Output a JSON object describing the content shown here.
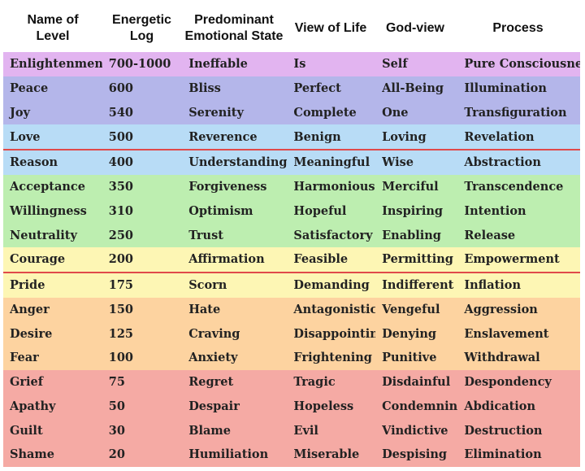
{
  "headers": [
    "Name of\nLevel",
    "Energetic\nLog",
    "Predominant\nEmotional State",
    "View of Life",
    "God-view",
    "Process"
  ],
  "colors": {
    "violet": "#e2b4f0",
    "blue_violet": "#b4b6ea",
    "light_blue": "#b8dcf6",
    "green": "#bdeeb0",
    "yellow": "#fdf6b4",
    "orange": "#fdd3a0",
    "red": "#f5aaa4",
    "divider": "#e04a4a"
  },
  "rows": [
    {
      "level": "Enlightenment",
      "log": "700-1000",
      "emotion": "Ineffable",
      "view": "Is",
      "god": "Self",
      "process": "Pure Consciousness",
      "color": "#e2b4f0",
      "divider_above": false
    },
    {
      "level": "Peace",
      "log": "600",
      "emotion": "Bliss",
      "view": "Perfect",
      "god": "All-Being",
      "process": "Illumination",
      "color": "#b4b6ea",
      "divider_above": false
    },
    {
      "level": "Joy",
      "log": "540",
      "emotion": "Serenity",
      "view": "Complete",
      "god": "One",
      "process": "Transfiguration",
      "color": "#b4b6ea",
      "divider_above": false
    },
    {
      "level": "Love",
      "log": "500",
      "emotion": "Reverence",
      "view": "Benign",
      "god": "Loving",
      "process": "Revelation",
      "color": "#b8dcf6",
      "divider_above": false
    },
    {
      "level": "Reason",
      "log": "400",
      "emotion": "Understanding",
      "view": "Meaningful",
      "god": "Wise",
      "process": "Abstraction",
      "color": "#b8dcf6",
      "divider_above": true
    },
    {
      "level": "Acceptance",
      "log": "350",
      "emotion": "Forgiveness",
      "view": "Harmonious",
      "god": "Merciful",
      "process": "Transcendence",
      "color": "#bdeeb0",
      "divider_above": false
    },
    {
      "level": "Willingness",
      "log": "310",
      "emotion": "Optimism",
      "view": "Hopeful",
      "god": "Inspiring",
      "process": "Intention",
      "color": "#bdeeb0",
      "divider_above": false
    },
    {
      "level": "Neutrality",
      "log": "250",
      "emotion": "Trust",
      "view": "Satisfactory",
      "god": "Enabling",
      "process": "Release",
      "color": "#bdeeb0",
      "divider_above": false
    },
    {
      "level": "Courage",
      "log": "200",
      "emotion": "Affirmation",
      "view": "Feasible",
      "god": "Permitting",
      "process": "Empowerment",
      "color": "#fdf6b4",
      "divider_above": false
    },
    {
      "level": "Pride",
      "log": "175",
      "emotion": "Scorn",
      "view": "Demanding",
      "god": "Indifferent",
      "process": "Inflation",
      "color": "#fdf6b4",
      "divider_above": true
    },
    {
      "level": "Anger",
      "log": "150",
      "emotion": "Hate",
      "view": "Antagonistic",
      "god": "Vengeful",
      "process": "Aggression",
      "color": "#fdd3a0",
      "divider_above": false
    },
    {
      "level": "Desire",
      "log": "125",
      "emotion": "Craving",
      "view": "Disappointing",
      "god": "Denying",
      "process": "Enslavement",
      "color": "#fdd3a0",
      "divider_above": false
    },
    {
      "level": "Fear",
      "log": "100",
      "emotion": "Anxiety",
      "view": "Frightening",
      "god": "Punitive",
      "process": "Withdrawal",
      "color": "#fdd3a0",
      "divider_above": false
    },
    {
      "level": "Grief",
      "log": "75",
      "emotion": "Regret",
      "view": "Tragic",
      "god": "Disdainful",
      "process": "Despondency",
      "color": "#f5aaa4",
      "divider_above": false
    },
    {
      "level": "Apathy",
      "log": "50",
      "emotion": "Despair",
      "view": "Hopeless",
      "god": "Condemning",
      "process": "Abdication",
      "color": "#f5aaa4",
      "divider_above": false
    },
    {
      "level": "Guilt",
      "log": "30",
      "emotion": "Blame",
      "view": "Evil",
      "god": "Vindictive",
      "process": "Destruction",
      "color": "#f5aaa4",
      "divider_above": false
    },
    {
      "level": "Shame",
      "log": "20",
      "emotion": "Humiliation",
      "view": "Miserable",
      "god": "Despising",
      "process": "Elimination",
      "color": "#f5aaa4",
      "divider_above": false
    }
  ]
}
